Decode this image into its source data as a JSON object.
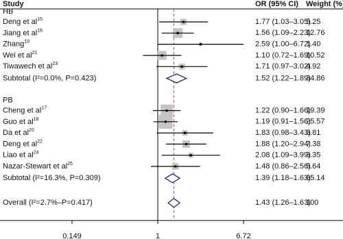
{
  "chart_data": {
    "type": "forest",
    "columns": [
      "Study",
      "OR (95% CI)",
      "Weight (%)"
    ],
    "log_x": true,
    "xlim": [
      0.149,
      6.72
    ],
    "xticks": [
      0.149,
      1,
      6.72
    ],
    "reference_line": 1,
    "box_color": "#c4c4c4",
    "line_color": "#000000",
    "diamond_color": "#1f2a6b",
    "overall_line_color": "#b2456e",
    "groups": [
      {
        "name": "HB",
        "studies": [
          {
            "name": "Deng et al",
            "ref": "15",
            "ci_label": "1.77 (1.03–3.05)",
            "or": 1.77,
            "lower": 1.03,
            "upper": 3.05,
            "weight": 5.25
          },
          {
            "name": "Jiang et al",
            "ref": "16",
            "ci_label": "1.56 (1.09–2.23)",
            "or": 1.56,
            "lower": 1.09,
            "upper": 2.23,
            "weight": 12.76
          },
          {
            "name": "Zhang",
            "ref": "19",
            "ci_label": "2.59 (1.00–6.72)",
            "or": 2.59,
            "lower": 1.0,
            "upper": 6.72,
            "weight": 1.4,
            "weight_label": "1.40"
          },
          {
            "name": "Wei et al",
            "ref": "21",
            "ci_label": "1.10 (0.72–1.69)",
            "or": 1.1,
            "lower": 0.72,
            "upper": 1.69,
            "weight": 10.52
          },
          {
            "name": "Tiwawech et al",
            "ref": "23",
            "ci_label": "1.71 (0.97–3.02)",
            "or": 1.71,
            "lower": 0.97,
            "upper": 3.02,
            "weight": 4.92
          }
        ],
        "subtotal": {
          "label": "Subtotal (I²=0.0%, P=0.423)",
          "ci_label": "1.52 (1.22–1.89)",
          "or": 1.52,
          "lower": 1.22,
          "upper": 1.89,
          "weight": 34.86
        }
      },
      {
        "name": "PB",
        "studies": [
          {
            "name": "Cheng et al",
            "ref": "17",
            "ci_label": "1.22 (0.90–1.66)",
            "or": 1.22,
            "lower": 0.9,
            "upper": 1.66,
            "weight": 19.39
          },
          {
            "name": "Guo et al",
            "ref": "18",
            "ci_label": "1.19 (0.91–1.56)",
            "or": 1.19,
            "lower": 0.91,
            "upper": 1.56,
            "weight": 25.57
          },
          {
            "name": "Da et al",
            "ref": "20",
            "ci_label": "1.83 (0.98–3.43)",
            "or": 1.83,
            "lower": 0.98,
            "upper": 3.43,
            "weight": 3.81
          },
          {
            "name": "Deng et al",
            "ref": "22",
            "ci_label": "1.88 (1.20–2.94)",
            "or": 1.88,
            "lower": 1.2,
            "upper": 2.94,
            "weight": 7.38
          },
          {
            "name": "Liao et al",
            "ref": "24",
            "ci_label": "2.08 (1.09–3.99)",
            "or": 2.08,
            "lower": 1.09,
            "upper": 3.99,
            "weight": 3.35
          },
          {
            "name": "Nazar-Stewart et al",
            "ref": "25",
            "ci_label": "1.48 (0.86–2.56)",
            "or": 1.48,
            "lower": 0.86,
            "upper": 2.56,
            "weight": 5.64
          }
        ],
        "subtotal": {
          "label": "Subtotal (I²=16.3%, P=0.309)",
          "ci_label": "1.39 (1.18–1.63)",
          "or": 1.39,
          "lower": 1.18,
          "upper": 1.63,
          "weight": 65.14
        }
      }
    ],
    "overall": {
      "label": "Overall (I²=2.7%–P=0.417)",
      "ci_label": "1.43 (1.26–1.63)",
      "or": 1.43,
      "lower": 1.26,
      "upper": 1.63,
      "weight": 100
    }
  }
}
